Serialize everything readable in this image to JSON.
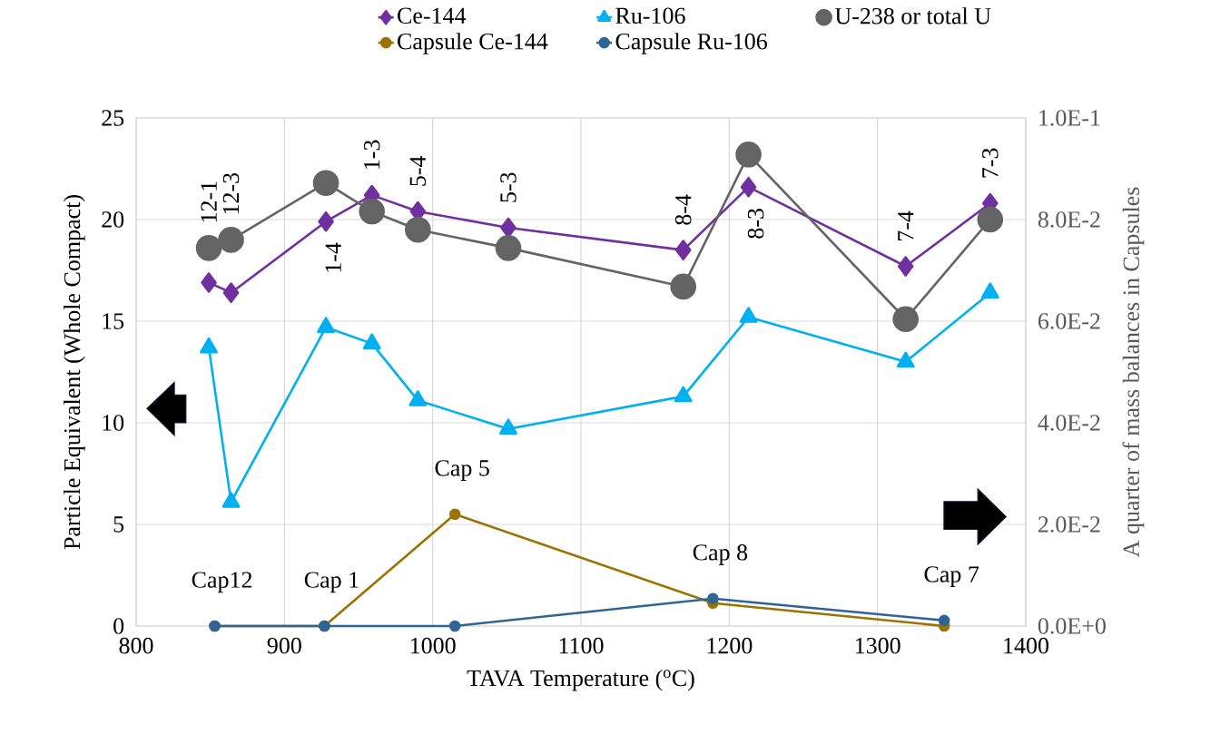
{
  "chart_data": {
    "type": "line",
    "xlabel": "TAVA Temperature ($^{o}$C)",
    "ylabel": "Particle Equivalent (Whole Compact)",
    "y2label": "A quarter of mass balances in Capsules",
    "xlim": [
      800,
      1400
    ],
    "xticks": [
      800,
      900,
      1000,
      1100,
      1200,
      1300,
      1400
    ],
    "ylim": [
      0,
      25
    ],
    "yticks": [
      0,
      5,
      10,
      15,
      20,
      25
    ],
    "y2lim": [
      0,
      0.1
    ],
    "y2ticks": [
      {
        "value": 0,
        "label": "0.0E+0"
      },
      {
        "value": 0.02,
        "label": "2.0E-2"
      },
      {
        "value": 0.04,
        "label": "4.0E-2"
      },
      {
        "value": 0.06,
        "label": "6.0E-2"
      },
      {
        "value": 0.08,
        "label": "8.0E-2"
      },
      {
        "value": 0.1,
        "label": "1.0E-1"
      }
    ],
    "grid": true,
    "legend": "top",
    "x": [
      849,
      864,
      928,
      959,
      990,
      1051,
      1169,
      1213,
      1319,
      1376
    ],
    "series": [
      {
        "name": "Ce-144",
        "color": "#7030a0",
        "marker": "diamond",
        "values": [
          16.9,
          16.4,
          19.9,
          21.2,
          20.4,
          19.6,
          18.5,
          21.6,
          17.7,
          20.8
        ]
      },
      {
        "name": "Ru-106",
        "color": "#00b0f0",
        "marker": "triangle",
        "values": [
          13.7,
          6.1,
          14.7,
          13.9,
          11.1,
          9.7,
          11.3,
          15.2,
          13.0,
          16.4
        ]
      },
      {
        "name": "U-238 or total U",
        "color": "#646464",
        "marker": "circle",
        "values": [
          18.6,
          19.0,
          21.8,
          20.4,
          19.5,
          18.6,
          16.7,
          23.2,
          15.1,
          20.0
        ]
      },
      {
        "name": "Capsule Ce-144",
        "color": "#9c7200",
        "marker": "circle",
        "axis": "y2",
        "x": [
          853,
          927,
          1015,
          1189,
          1345
        ],
        "values": [
          0,
          0,
          0.022,
          0.0045,
          0
        ]
      },
      {
        "name": "Capsule Ru-106",
        "color": "#2e6496",
        "marker": "circle",
        "axis": "y2",
        "x": [
          853,
          927,
          1015,
          1189,
          1345
        ],
        "values": [
          0,
          0,
          0,
          0.0054,
          0.0011
        ]
      }
    ],
    "annotations": [
      {
        "text": "12-1",
        "x": 849,
        "y": 18.6
      },
      {
        "text": "12-3",
        "x": 864,
        "y": 19.0
      },
      {
        "text": "1-4",
        "x": 928,
        "y": 19.9
      },
      {
        "text": "1-3",
        "x": 959,
        "y": 21.2
      },
      {
        "text": "5-4",
        "x": 990,
        "y": 20.4
      },
      {
        "text": "5-3",
        "x": 1051,
        "y": 19.6
      },
      {
        "text": "8-4",
        "x": 1169,
        "y": 18.5
      },
      {
        "text": "8-3",
        "x": 1213,
        "y": 21.6
      },
      {
        "text": "7-4",
        "x": 1319,
        "y": 17.7
      },
      {
        "text": "7-3",
        "x": 1376,
        "y": 20.8
      },
      "Cap12",
      "Cap 1",
      "Cap 5",
      "Cap 8",
      "Cap 7"
    ]
  }
}
